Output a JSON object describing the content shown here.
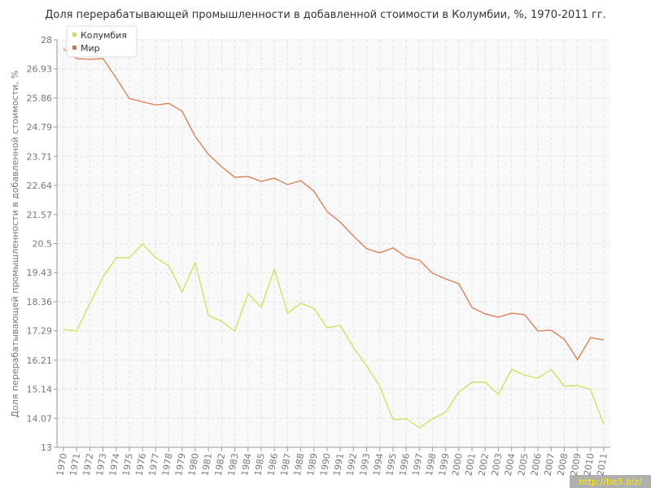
{
  "chart_data": {
    "type": "line",
    "title": "Доля перерабатывающей промышленности в добавленной стоимости в Колумбии, %, 1970-2011 гг.",
    "y_label": "Доля перерабатывающей промышленности в добавленной стоимости, %",
    "watermark": "http://be5.biz/",
    "categories": [
      "1970",
      "1971",
      "1972",
      "1973",
      "1974",
      "1975",
      "1976",
      "1977",
      "1978",
      "1979",
      "1980",
      "1981",
      "1982",
      "1983",
      "1984",
      "1985",
      "1986",
      "1987",
      "1988",
      "1989",
      "1990",
      "1991",
      "1992",
      "1993",
      "1994",
      "1995",
      "1996",
      "1997",
      "1998",
      "1999",
      "2000",
      "2001",
      "2002",
      "2003",
      "2004",
      "2005",
      "2006",
      "2007",
      "2008",
      "2009",
      "2010",
      "2011"
    ],
    "series": [
      {
        "name": "Колумбия",
        "color": "#c8e04a",
        "values": [
          17.34,
          17.28,
          18.3,
          19.26,
          19.98,
          19.98,
          20.49,
          19.98,
          19.68,
          18.72,
          19.8,
          17.85,
          17.64,
          17.28,
          18.66,
          18.15,
          19.56,
          17.94,
          18.3,
          18.12,
          17.4,
          17.49,
          16.68,
          15.99,
          15.25,
          14.02,
          14.05,
          13.72,
          14.05,
          14.29,
          15.04,
          15.4,
          15.4,
          14.95,
          15.87,
          15.66,
          15.54,
          15.87,
          15.25,
          15.28,
          15.13,
          13.84
        ]
      },
      {
        "name": "Мир",
        "color": "#e07040",
        "values": [
          27.67,
          27.31,
          27.28,
          27.31,
          26.59,
          25.84,
          25.72,
          25.6,
          25.66,
          25.37,
          24.44,
          23.78,
          23.33,
          22.94,
          22.97,
          22.79,
          22.91,
          22.67,
          22.82,
          22.43,
          21.68,
          21.29,
          20.78,
          20.31,
          20.16,
          20.34,
          20.01,
          19.89,
          19.41,
          19.2,
          19.02,
          18.15,
          17.91,
          17.79,
          17.94,
          17.88,
          17.28,
          17.31,
          16.98,
          16.23,
          17.04,
          16.95
        ]
      }
    ],
    "ylim": [
      13,
      28
    ],
    "yticks": [
      13,
      14.07,
      15.14,
      16.21,
      17.29,
      18.36,
      19.43,
      20.5,
      21.57,
      22.64,
      23.71,
      24.79,
      25.86,
      26.93,
      28
    ],
    "grid": true,
    "legend": "top-left"
  }
}
